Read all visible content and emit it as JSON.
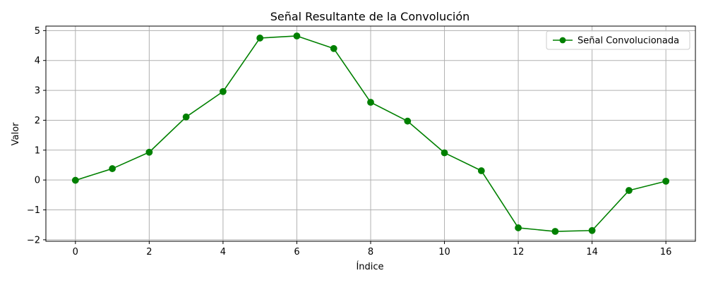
{
  "chart_data": {
    "type": "line",
    "title": "Señal Resultante de la Convolución",
    "xlabel": "Índice",
    "ylabel": "Valor",
    "xlim": [
      -0.8,
      16.8
    ],
    "ylim": [
      -2.05,
      5.15
    ],
    "xticks": [
      0,
      2,
      4,
      6,
      8,
      10,
      12,
      14,
      16
    ],
    "xtick_labels": [
      "0",
      "2",
      "4",
      "6",
      "8",
      "10",
      "12",
      "14",
      "16"
    ],
    "yticks": [
      -2,
      -1,
      0,
      1,
      2,
      3,
      4,
      5
    ],
    "ytick_labels": [
      "−2",
      "−1",
      "0",
      "1",
      "2",
      "3",
      "4",
      "5"
    ],
    "grid": true,
    "legend_position": "top-right",
    "series": [
      {
        "name": "Señal Convolucionada",
        "color": "#008000",
        "marker": "circle",
        "x": [
          0,
          1,
          2,
          3,
          4,
          5,
          6,
          7,
          8,
          9,
          10,
          11,
          12,
          13,
          14,
          15,
          16
        ],
        "values": [
          -0.01,
          0.38,
          0.93,
          2.11,
          2.96,
          4.75,
          4.82,
          4.4,
          2.6,
          1.97,
          0.91,
          0.31,
          -1.6,
          -1.72,
          -1.69,
          -0.35,
          -0.04
        ]
      }
    ]
  }
}
